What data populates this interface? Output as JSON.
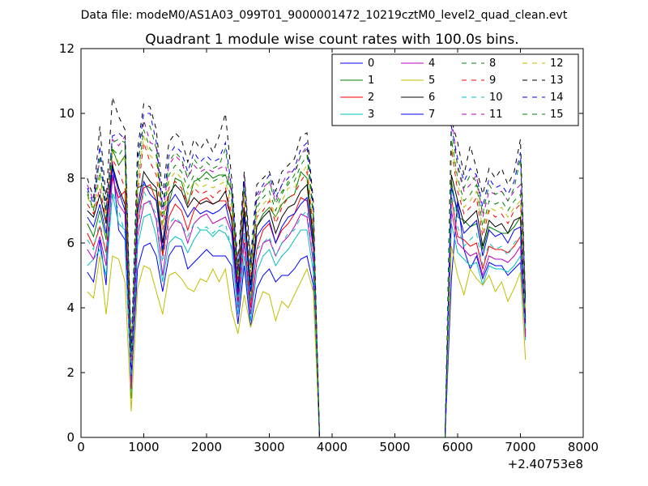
{
  "chart_data": {
    "type": "line",
    "suptitle": "Data file: modeM0/AS1A03_099T01_9000001472_10219cztM0_level2_quad_clean.evt",
    "title": "Quadrant 1 module wise count rates with 100.0s bins.",
    "xlabel": "",
    "ylabel": "",
    "x_offset_label": "+2.40753e8",
    "xlim": [
      0,
      8000
    ],
    "ylim": [
      0,
      12
    ],
    "xticks": [
      "0",
      "1000",
      "2000",
      "3000",
      "4000",
      "5000",
      "6000",
      "7000",
      "8000"
    ],
    "yticks": [
      "0",
      "2",
      "4",
      "6",
      "8",
      "10",
      "12"
    ],
    "legend_position": "top-right",
    "x_segments": [
      [
        100,
        200,
        300,
        400,
        500,
        600,
        700,
        800,
        900,
        1000,
        1100,
        1200,
        1300,
        1400,
        1500,
        1600,
        1700,
        1800,
        1900,
        2000,
        2100,
        2200,
        2300,
        2400,
        2500,
        2600,
        2700,
        2800,
        2900,
        3000,
        3100,
        3200,
        3300,
        3400,
        3500,
        3600,
        3700,
        3800
      ],
      [
        3800,
        5800
      ],
      [
        5800,
        5900,
        6000,
        6100,
        6200,
        6300,
        6400,
        6500,
        6600,
        6700,
        6800,
        6900,
        7000,
        7080
      ]
    ],
    "series": [
      {
        "name": "0",
        "color": "#0000ff",
        "style": "solid",
        "segments": [
          [
            5.1,
            4.8,
            6.1,
            4.7,
            8.5,
            6.4,
            6.1,
            1.6,
            5.2,
            5.9,
            6.0,
            5.6,
            4.5,
            5.6,
            5.9,
            5.9,
            5.2,
            5.4,
            5.6,
            5.8,
            5.6,
            5.6,
            5.6,
            5.3,
            3.5,
            5.3,
            3.4,
            4.6,
            5.0,
            5.2,
            4.8,
            5.0,
            5.0,
            5.2,
            5.5,
            5.6,
            4.7,
            0.0
          ],
          [
            0.0,
            0.0
          ],
          [
            0.0,
            4.9,
            7.3,
            5.8,
            5.2,
            5.6,
            4.9,
            5.4,
            5.3,
            5.3,
            5.0,
            5.2,
            5.4,
            3.3
          ]
        ]
      },
      {
        "name": "1",
        "color": "#008000",
        "style": "solid",
        "segments": [
          [
            6.6,
            6.2,
            7.0,
            6.1,
            8.9,
            8.4,
            8.7,
            1.2,
            7.7,
            7.8,
            7.7,
            7.6,
            5.7,
            7.2,
            8.0,
            7.9,
            7.2,
            7.9,
            8.0,
            8.2,
            8.0,
            8.1,
            8.1,
            7.6,
            4.4,
            6.9,
            4.2,
            6.5,
            6.9,
            7.1,
            6.8,
            7.2,
            7.4,
            7.5,
            8.2,
            8.0,
            6.2,
            0.0
          ],
          [
            0.0,
            0.0
          ],
          [
            0.0,
            7.9,
            6.8,
            6.7,
            6.5,
            6.6,
            5.8,
            6.5,
            6.4,
            6.3,
            6.3,
            6.5,
            6.8,
            3.6
          ]
        ]
      },
      {
        "name": "2",
        "color": "#ff0000",
        "style": "solid",
        "segments": [
          [
            6.3,
            5.9,
            6.5,
            5.7,
            8.0,
            7.4,
            7.6,
            1.8,
            6.6,
            7.7,
            7.8,
            7.3,
            5.6,
            6.8,
            7.2,
            7.0,
            6.4,
            7.0,
            7.3,
            7.4,
            7.2,
            7.3,
            7.3,
            6.8,
            4.2,
            6.3,
            4.0,
            5.8,
            6.4,
            6.6,
            6.0,
            6.4,
            6.6,
            6.9,
            7.4,
            7.3,
            5.8,
            0.0
          ],
          [
            0.0,
            0.0
          ],
          [
            0.0,
            7.4,
            6.2,
            6.1,
            5.9,
            6.0,
            5.2,
            5.9,
            5.8,
            5.8,
            5.7,
            5.9,
            6.2,
            3.2
          ]
        ]
      },
      {
        "name": "3",
        "color": "#00bfbf",
        "style": "solid",
        "segments": [
          [
            5.3,
            5.5,
            5.8,
            5.0,
            7.5,
            6.6,
            6.4,
            1.4,
            5.9,
            6.8,
            6.9,
            6.2,
            4.8,
            6.0,
            6.2,
            6.1,
            5.7,
            6.1,
            6.4,
            6.4,
            6.2,
            6.4,
            6.3,
            5.9,
            3.8,
            5.6,
            3.6,
            5.1,
            5.6,
            5.8,
            5.3,
            5.6,
            5.8,
            6.1,
            6.4,
            6.4,
            5.1,
            0.0
          ],
          [
            0.0,
            0.0
          ],
          [
            0.0,
            6.6,
            5.7,
            5.5,
            5.3,
            5.4,
            4.7,
            5.3,
            5.2,
            5.2,
            5.1,
            5.3,
            5.6,
            3.0
          ]
        ]
      },
      {
        "name": "4",
        "color": "#bf00bf",
        "style": "solid",
        "segments": [
          [
            5.8,
            5.5,
            6.2,
            5.3,
            8.1,
            7.2,
            6.9,
            1.5,
            6.2,
            7.2,
            7.3,
            6.7,
            5.0,
            6.4,
            6.7,
            6.6,
            6.0,
            6.6,
            6.8,
            6.9,
            6.6,
            6.7,
            6.8,
            6.3,
            4.0,
            6.0,
            3.8,
            5.4,
            6.0,
            6.1,
            5.6,
            6.0,
            6.2,
            6.5,
            6.9,
            6.8,
            5.4,
            0.0
          ],
          [
            0.0,
            0.0
          ],
          [
            0.0,
            7.0,
            6.0,
            5.8,
            5.6,
            5.7,
            5.0,
            5.6,
            5.5,
            5.5,
            5.4,
            5.6,
            5.9,
            3.1
          ]
        ]
      },
      {
        "name": "5",
        "color": "#bfbf00",
        "style": "solid",
        "segments": [
          [
            4.5,
            4.3,
            5.6,
            3.8,
            5.6,
            5.5,
            4.8,
            0.8,
            4.6,
            5.3,
            5.2,
            4.5,
            3.8,
            5.0,
            5.1,
            4.9,
            4.6,
            4.5,
            4.9,
            4.8,
            5.2,
            4.8,
            5.2,
            3.9,
            3.2,
            4.4,
            3.4,
            4.0,
            4.5,
            4.4,
            3.6,
            4.2,
            4.0,
            4.4,
            4.8,
            5.2,
            4.5,
            0.0
          ],
          [
            0.0,
            0.0
          ],
          [
            0.0,
            5.9,
            5.0,
            4.4,
            5.2,
            4.9,
            4.7,
            5.0,
            4.5,
            4.8,
            4.2,
            4.6,
            5.1,
            2.4
          ]
        ]
      },
      {
        "name": "6",
        "color": "#000000",
        "style": "solid",
        "segments": [
          [
            7.0,
            6.8,
            7.5,
            6.6,
            8.4,
            7.7,
            7.2,
            2.0,
            7.1,
            8.2,
            7.9,
            7.7,
            6.0,
            7.5,
            7.8,
            7.6,
            7.1,
            7.4,
            7.2,
            7.3,
            7.2,
            7.3,
            7.6,
            6.7,
            4.6,
            7.1,
            4.7,
            6.5,
            6.8,
            7.0,
            6.3,
            6.8,
            7.1,
            7.2,
            7.6,
            7.8,
            6.1,
            0.0
          ],
          [
            0.0,
            0.0
          ],
          [
            0.0,
            8.1,
            7.3,
            6.6,
            6.8,
            7.0,
            5.9,
            6.7,
            6.5,
            6.6,
            6.3,
            6.7,
            6.8,
            3.7
          ]
        ]
      },
      {
        "name": "7",
        "color": "#0000ff",
        "style": "solid",
        "segments": [
          [
            6.8,
            6.5,
            7.2,
            6.3,
            8.3,
            7.6,
            7.0,
            1.9,
            6.9,
            7.9,
            7.5,
            7.3,
            5.8,
            7.2,
            7.5,
            7.2,
            6.8,
            7.1,
            6.9,
            7.0,
            6.9,
            7.0,
            7.2,
            6.4,
            4.4,
            6.8,
            4.5,
            6.2,
            6.5,
            6.7,
            6.0,
            6.5,
            6.8,
            6.9,
            7.2,
            7.4,
            5.9,
            0.0
          ],
          [
            0.0,
            0.0
          ],
          [
            0.0,
            7.7,
            7.0,
            6.3,
            6.5,
            6.7,
            5.6,
            6.4,
            6.2,
            6.3,
            6.0,
            6.4,
            6.5,
            3.5
          ]
        ]
      },
      {
        "name": "8",
        "color": "#008000",
        "style": "dashed",
        "segments": [
          [
            7.5,
            7.0,
            8.2,
            6.9,
            8.9,
            8.7,
            9.0,
            2.5,
            8.0,
            9.5,
            8.9,
            8.7,
            6.6,
            8.1,
            8.4,
            8.2,
            7.7,
            8.1,
            7.9,
            8.0,
            7.9,
            8.0,
            8.1,
            7.3,
            5.0,
            7.8,
            5.1,
            7.1,
            7.4,
            7.6,
            7.0,
            7.5,
            7.9,
            7.9,
            8.4,
            8.7,
            6.8,
            0.0
          ],
          [
            0.0,
            0.0
          ],
          [
            0.0,
            9.2,
            8.0,
            7.3,
            7.5,
            7.8,
            6.5,
            7.3,
            7.2,
            7.3,
            7.0,
            7.3,
            7.5,
            3.9
          ]
        ]
      },
      {
        "name": "9",
        "color": "#ff0000",
        "style": "dashed",
        "segments": [
          [
            7.2,
            6.9,
            7.7,
            6.7,
            8.6,
            8.2,
            7.7,
            2.3,
            7.5,
            9.1,
            8.5,
            8.1,
            6.4,
            7.7,
            7.9,
            7.7,
            7.2,
            7.7,
            7.5,
            7.6,
            7.4,
            7.6,
            7.7,
            6.9,
            4.8,
            7.4,
            4.9,
            6.8,
            7.0,
            7.3,
            6.6,
            7.1,
            7.4,
            7.5,
            7.9,
            8.2,
            6.4,
            0.0
          ],
          [
            0.0,
            0.0
          ],
          [
            0.0,
            8.9,
            7.6,
            6.9,
            7.1,
            7.4,
            6.2,
            7.0,
            6.8,
            6.9,
            6.6,
            7.0,
            7.2,
            3.8
          ]
        ]
      },
      {
        "name": "10",
        "color": "#00bfbf",
        "style": "dashed",
        "segments": [
          [
            6.1,
            5.8,
            6.7,
            5.6,
            7.6,
            7.0,
            6.3,
            1.9,
            6.4,
            7.6,
            7.2,
            6.9,
            5.4,
            6.6,
            6.8,
            6.6,
            6.2,
            6.6,
            6.4,
            6.5,
            6.3,
            6.5,
            6.6,
            5.8,
            4.1,
            6.3,
            4.2,
            5.8,
            6.0,
            6.2,
            5.6,
            6.0,
            6.3,
            6.4,
            6.8,
            7.0,
            5.5,
            0.0
          ],
          [
            0.0,
            0.0
          ],
          [
            0.0,
            7.6,
            6.5,
            5.9,
            6.1,
            6.3,
            5.3,
            6.0,
            5.8,
            5.9,
            5.6,
            6.0,
            6.2,
            3.3
          ]
        ]
      },
      {
        "name": "11",
        "color": "#bf00bf",
        "style": "dashed",
        "segments": [
          [
            7.8,
            7.3,
            8.6,
            7.1,
            9.2,
            9.0,
            9.3,
            2.6,
            8.3,
            9.8,
            9.1,
            9.0,
            6.8,
            8.4,
            8.7,
            8.5,
            8.0,
            8.4,
            8.2,
            8.3,
            8.2,
            8.3,
            8.4,
            7.6,
            5.2,
            8.1,
            5.3,
            7.4,
            7.7,
            7.9,
            7.3,
            7.8,
            8.2,
            8.2,
            8.7,
            9.0,
            7.1,
            0.0
          ],
          [
            0.0,
            0.0
          ],
          [
            0.0,
            10.0,
            8.3,
            7.6,
            7.8,
            8.1,
            6.8,
            7.6,
            7.5,
            7.6,
            7.3,
            7.6,
            7.8,
            4.1
          ]
        ]
      },
      {
        "name": "12",
        "color": "#bfbf00",
        "style": "dashed",
        "segments": [
          [
            7.4,
            7.1,
            8.0,
            6.9,
            8.8,
            8.5,
            8.6,
            2.4,
            7.8,
            9.3,
            8.7,
            8.5,
            6.5,
            7.9,
            8.2,
            8.0,
            7.5,
            7.9,
            7.7,
            7.8,
            7.7,
            7.8,
            7.9,
            7.1,
            4.9,
            7.6,
            5.0,
            6.9,
            7.2,
            7.4,
            6.8,
            7.3,
            7.7,
            7.7,
            8.1,
            8.4,
            6.6,
            0.0
          ],
          [
            0.0,
            0.0
          ],
          [
            0.0,
            9.1,
            7.8,
            7.1,
            7.3,
            7.6,
            6.4,
            7.1,
            7.0,
            7.1,
            6.8,
            7.1,
            7.3,
            3.9
          ]
        ]
      },
      {
        "name": "13",
        "color": "#000000",
        "style": "dashed",
        "segments": [
          [
            8.0,
            7.4,
            9.6,
            7.3,
            10.5,
            9.9,
            9.5,
            2.7,
            8.9,
            10.3,
            10.2,
            9.5,
            7.5,
            9.1,
            9.4,
            9.2,
            8.5,
            9.2,
            8.9,
            9.2,
            8.8,
            9.3,
            10.0,
            8.0,
            5.4,
            8.2,
            5.5,
            7.8,
            8.0,
            8.2,
            7.6,
            8.2,
            8.4,
            8.6,
            9.3,
            9.4,
            7.3,
            0.0
          ],
          [
            0.0,
            0.0
          ],
          [
            0.0,
            9.8,
            9.1,
            8.1,
            9.0,
            8.3,
            7.5,
            8.3,
            8.0,
            8.3,
            7.8,
            8.2,
            9.2,
            4.3
          ]
        ]
      },
      {
        "name": "14",
        "color": "#0000ff",
        "style": "dashed",
        "segments": [
          [
            7.7,
            7.2,
            9.0,
            7.0,
            9.3,
            9.4,
            9.2,
            2.6,
            8.6,
            10.0,
            10.0,
            9.1,
            7.1,
            8.7,
            9.0,
            8.8,
            8.2,
            8.8,
            8.5,
            8.7,
            8.5,
            8.6,
            9.1,
            7.7,
            5.1,
            7.9,
            5.3,
            7.5,
            7.8,
            8.1,
            7.4,
            7.8,
            8.0,
            8.3,
            8.9,
            9.1,
            7.0,
            0.0
          ],
          [
            0.0,
            0.0
          ],
          [
            0.0,
            9.6,
            8.6,
            7.9,
            8.3,
            8.1,
            7.1,
            8.0,
            7.7,
            7.8,
            7.5,
            7.9,
            8.8,
            4.2
          ]
        ]
      },
      {
        "name": "15",
        "color": "#008000",
        "style": "dashed",
        "segments": [
          [
            7.6,
            7.0,
            8.7,
            6.8,
            9.1,
            9.2,
            9.1,
            2.5,
            8.4,
            9.7,
            9.6,
            8.9,
            6.9,
            8.5,
            8.8,
            8.6,
            8.0,
            8.6,
            8.3,
            8.5,
            8.3,
            8.4,
            8.9,
            7.5,
            5.0,
            7.7,
            5.2,
            7.3,
            7.6,
            7.9,
            7.2,
            7.6,
            7.8,
            8.1,
            8.7,
            8.9,
            6.9,
            0.0
          ],
          [
            0.0,
            0.0
          ],
          [
            0.0,
            9.4,
            8.4,
            7.7,
            8.1,
            7.9,
            6.9,
            7.8,
            7.5,
            7.6,
            7.3,
            7.7,
            8.6,
            4.0
          ]
        ]
      }
    ]
  }
}
